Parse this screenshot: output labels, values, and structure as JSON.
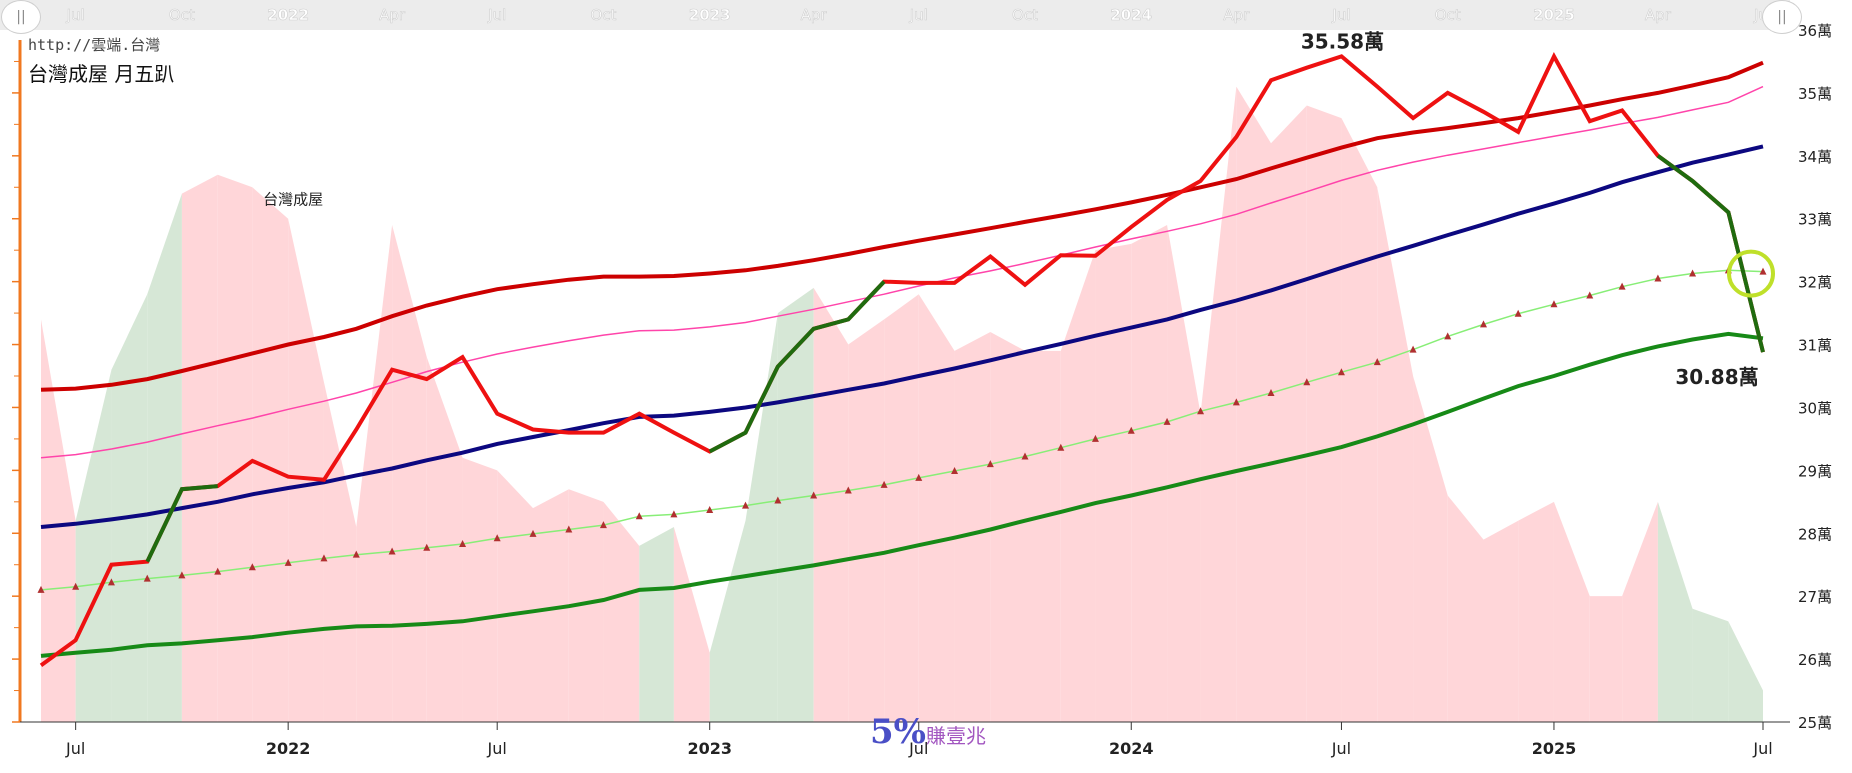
{
  "site": {
    "url": "http://雲端.台灣"
  },
  "brand": {
    "big": "5%",
    "small": "賺壹兆"
  },
  "navigator": {
    "handle_left": "||",
    "handle_right": "||",
    "top_ticks": [
      {
        "x": "2021-07-01",
        "label": "Jul",
        "bold": false
      },
      {
        "x": "2021-10-01",
        "label": "Oct",
        "bold": false
      },
      {
        "x": "2022-01-01",
        "label": "2022",
        "bold": true
      },
      {
        "x": "2022-04-01",
        "label": "Apr",
        "bold": false
      },
      {
        "x": "2022-07-01",
        "label": "Jul",
        "bold": false
      },
      {
        "x": "2022-10-01",
        "label": "Oct",
        "bold": false
      },
      {
        "x": "2023-01-01",
        "label": "2023",
        "bold": true
      },
      {
        "x": "2023-04-01",
        "label": "Apr",
        "bold": false
      },
      {
        "x": "2023-07-01",
        "label": "Jul",
        "bold": false
      },
      {
        "x": "2023-10-01",
        "label": "Oct",
        "bold": false
      },
      {
        "x": "2024-01-01",
        "label": "2024",
        "bold": true
      },
      {
        "x": "2024-04-01",
        "label": "Apr",
        "bold": false
      },
      {
        "x": "2024-07-01",
        "label": "Jul",
        "bold": false
      },
      {
        "x": "2024-10-01",
        "label": "Oct",
        "bold": false
      },
      {
        "x": "2025-01-01",
        "label": "2025",
        "bold": true
      },
      {
        "x": "2025-04-01",
        "label": "Apr",
        "bold": false
      },
      {
        "x": "2025-07-01",
        "label": "Jul",
        "bold": false
      }
    ]
  },
  "chart_data": {
    "type": "line",
    "title": "台灣成屋 月五趴",
    "x_range": [
      "2021-06-01",
      "2025-07-01"
    ],
    "y_range": [
      25,
      36
    ],
    "y_ticks": [
      {
        "value": 36,
        "label": "36萬"
      },
      {
        "value": 35,
        "label": "35萬"
      },
      {
        "value": 34,
        "label": "34萬"
      },
      {
        "value": 33,
        "label": "33萬"
      },
      {
        "value": 32,
        "label": "32萬"
      },
      {
        "value": 31,
        "label": "31萬"
      },
      {
        "value": 30,
        "label": "30萬"
      },
      {
        "value": 29,
        "label": "29萬"
      },
      {
        "value": 28,
        "label": "28萬"
      },
      {
        "value": 27,
        "label": "27萬"
      },
      {
        "value": 26,
        "label": "26萬"
      },
      {
        "value": 25,
        "label": "25萬"
      }
    ],
    "x_ticks": [
      {
        "x": "2021-07-01",
        "label": "Jul",
        "bold": false
      },
      {
        "x": "2022-01-01",
        "label": "2022",
        "bold": true
      },
      {
        "x": "2022-07-01",
        "label": "Jul",
        "bold": false
      },
      {
        "x": "2023-01-01",
        "label": "2023",
        "bold": true
      },
      {
        "x": "2023-07-01",
        "label": "Jul",
        "bold": false
      },
      {
        "x": "2024-01-01",
        "label": "2024",
        "bold": true
      },
      {
        "x": "2024-07-01",
        "label": "Jul",
        "bold": false
      },
      {
        "x": "2025-01-01",
        "label": "2025",
        "bold": true
      },
      {
        "x": "2025-07-01",
        "label": "Jul",
        "bold": false
      }
    ],
    "dates": [
      "2021-06-01",
      "2021-07-01",
      "2021-08-01",
      "2021-09-01",
      "2021-10-01",
      "2021-11-01",
      "2021-12-01",
      "2022-01-01",
      "2022-02-01",
      "2022-03-01",
      "2022-04-01",
      "2022-05-01",
      "2022-06-01",
      "2022-07-01",
      "2022-08-01",
      "2022-09-01",
      "2022-10-01",
      "2022-11-01",
      "2022-12-01",
      "2023-01-01",
      "2023-02-01",
      "2023-03-01",
      "2023-04-01",
      "2023-05-01",
      "2023-06-01",
      "2023-07-01",
      "2023-08-01",
      "2023-09-01",
      "2023-10-01",
      "2023-11-01",
      "2023-12-01",
      "2024-01-01",
      "2024-02-01",
      "2024-03-01",
      "2024-04-01",
      "2024-05-01",
      "2024-06-01",
      "2024-07-01",
      "2024-08-01",
      "2024-09-01",
      "2024-10-01",
      "2024-11-01",
      "2024-12-01",
      "2025-01-01",
      "2025-02-01",
      "2025-03-01",
      "2025-04-01",
      "2025-05-01",
      "2025-06-01",
      "2025-07-01"
    ],
    "price": {
      "values": [
        25.9,
        26.3,
        27.5,
        27.55,
        28.7,
        28.75,
        29.15,
        28.9,
        28.85,
        29.65,
        30.6,
        30.45,
        30.8,
        29.9,
        29.65,
        29.6,
        29.6,
        29.9,
        29.6,
        29.3,
        29.6,
        30.65,
        31.25,
        31.4,
        32.0,
        31.98,
        31.98,
        32.4,
        31.95,
        32.42,
        32.41,
        32.87,
        33.3,
        33.6,
        34.3,
        35.2,
        35.4,
        35.58,
        35.1,
        34.6,
        35.0,
        34.7,
        34.38,
        35.58,
        34.55,
        34.72,
        34.0,
        33.6,
        33.1,
        30.88
      ],
      "green_start_indices": [
        3,
        19
      ],
      "green_end_indices": [
        5,
        24
      ],
      "green_tail_start_index": 46
    },
    "upper_band": [
      30.28,
      30.3,
      30.36,
      30.45,
      30.58,
      30.72,
      30.86,
      31.0,
      31.12,
      31.25,
      31.45,
      31.62,
      31.76,
      31.88,
      31.96,
      32.03,
      32.08,
      32.08,
      32.09,
      32.13,
      32.18,
      32.25,
      32.34,
      32.44,
      32.55,
      32.65,
      32.75,
      32.85,
      32.95,
      33.05,
      33.15,
      33.26,
      33.38,
      33.5,
      33.63,
      33.8,
      33.97,
      34.13,
      34.28,
      34.37,
      34.44,
      34.52,
      34.6,
      34.7,
      34.8,
      34.9,
      35.0,
      35.12,
      35.25,
      35.48
    ],
    "pink_line": [
      29.2,
      29.25,
      29.34,
      29.45,
      29.58,
      29.71,
      29.83,
      29.97,
      30.1,
      30.23,
      30.4,
      30.57,
      30.72,
      30.85,
      30.96,
      31.06,
      31.15,
      31.22,
      31.23,
      31.28,
      31.35,
      31.45,
      31.56,
      31.68,
      31.8,
      31.93,
      32.06,
      32.17,
      32.29,
      32.42,
      32.55,
      32.68,
      32.8,
      32.92,
      33.07,
      33.25,
      33.43,
      33.61,
      33.77,
      33.9,
      34.01,
      34.11,
      34.21,
      34.31,
      34.41,
      34.51,
      34.61,
      34.73,
      34.85,
      35.1
    ],
    "navy_line": [
      28.1,
      28.15,
      28.22,
      28.3,
      28.4,
      28.5,
      28.62,
      28.72,
      28.81,
      28.92,
      29.03,
      29.16,
      29.28,
      29.42,
      29.53,
      29.64,
      29.75,
      29.85,
      29.87,
      29.93,
      30.0,
      30.08,
      30.18,
      30.28,
      30.38,
      30.5,
      30.62,
      30.75,
      30.88,
      31.01,
      31.14,
      31.27,
      31.4,
      31.55,
      31.7,
      31.86,
      32.04,
      32.22,
      32.4,
      32.57,
      32.74,
      32.91,
      33.08,
      33.24,
      33.41,
      33.58,
      33.74,
      33.89,
      34.02,
      34.15
    ],
    "dotted_green_line": [
      27.1,
      27.15,
      27.22,
      27.28,
      27.33,
      27.39,
      27.46,
      27.53,
      27.6,
      27.66,
      27.71,
      27.77,
      27.83,
      27.92,
      27.99,
      28.06,
      28.13,
      28.27,
      28.3,
      28.37,
      28.44,
      28.52,
      28.6,
      28.68,
      28.77,
      28.88,
      28.99,
      29.1,
      29.22,
      29.36,
      29.5,
      29.63,
      29.77,
      29.94,
      30.08,
      30.23,
      30.4,
      30.56,
      30.72,
      30.92,
      31.13,
      31.32,
      31.49,
      31.64,
      31.78,
      31.92,
      32.05,
      32.13,
      32.18,
      32.16
    ],
    "lower_band": [
      26.05,
      26.1,
      26.15,
      26.22,
      26.25,
      26.3,
      26.35,
      26.42,
      26.48,
      26.52,
      26.53,
      26.56,
      26.6,
      26.68,
      26.76,
      26.84,
      26.94,
      27.1,
      27.13,
      27.23,
      27.32,
      27.4,
      27.49,
      27.59,
      27.69,
      27.81,
      27.93,
      28.06,
      28.2,
      28.34,
      28.48,
      28.6,
      28.73,
      28.86,
      28.99,
      29.11,
      29.24,
      29.37,
      29.54,
      29.73,
      29.93,
      30.14,
      30.34,
      30.5,
      30.68,
      30.83,
      30.97,
      31.08,
      31.17,
      31.1
    ],
    "background_area": {
      "values": [
        31.4,
        28.2,
        30.6,
        31.8,
        33.4,
        33.7,
        33.5,
        33.0,
        30.4,
        28.1,
        32.9,
        30.8,
        29.2,
        29.0,
        28.4,
        28.7,
        28.5,
        27.8,
        28.1,
        26.1,
        28.2,
        31.5,
        31.9,
        31.0,
        31.4,
        31.8,
        30.9,
        31.2,
        30.9,
        30.9,
        32.5,
        32.6,
        32.9,
        29.9,
        35.1,
        34.2,
        34.8,
        34.6,
        33.5,
        30.5,
        28.6,
        27.9,
        28.2,
        28.5,
        27.0,
        27.0,
        28.5,
        26.8,
        26.6,
        25.5
      ],
      "green_month_indices": [
        1,
        2,
        3,
        17,
        19,
        20,
        21,
        46,
        47,
        48,
        49
      ],
      "pink_color": "#ffd6d9",
      "green_color": "#d6e7d6"
    },
    "annotations": [
      {
        "label": "台灣成屋",
        "x": "2022-01-01",
        "y": 33.7
      },
      {
        "label": "35.58萬",
        "x": "2024-07-01",
        "y": 35.58
      },
      {
        "label": "30.88萬",
        "x": "2025-07-01",
        "y": 30.88
      }
    ],
    "highlight_circle": {
      "x": "2025-07-01",
      "y": 32.16,
      "color": "#bfe02a"
    },
    "colors": {
      "price_red": "#ee1111",
      "price_green": "#1f6b0f",
      "upper_band": "#cc0000",
      "pink_line": "#ff44aa",
      "navy_line": "#0c0880",
      "dotted_line": "#88ee77",
      "dotted_marker": "#b03030",
      "lower_band": "#178a17",
      "left_axis": "#f07820"
    },
    "grid": false
  }
}
